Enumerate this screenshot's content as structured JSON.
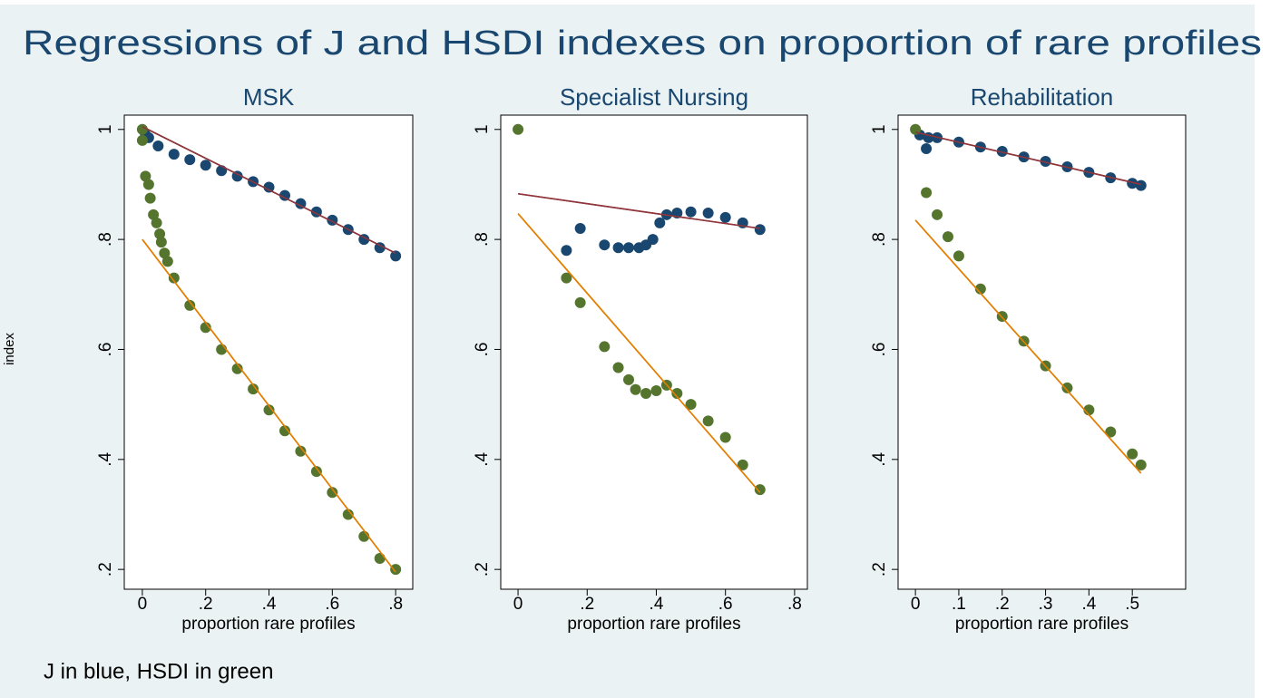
{
  "title": "Regressions of J and HSDI indexes on proportion of rare profiles",
  "ylabel": "index",
  "note": "J in blue, HSDI in green",
  "chart_data": [
    {
      "type": "scatter",
      "title": "MSK",
      "xlabel": "proportion rare profiles",
      "xlim": [
        -0.057,
        0.854
      ],
      "xticks": [
        0,
        {
          "value": 0.2,
          "label": ".2"
        },
        {
          "value": 0.4,
          "label": ".4"
        },
        {
          "value": 0.6,
          "label": ".6"
        },
        {
          "value": 0.8,
          "label": ".8"
        }
      ],
      "ylim": [
        0.164,
        1.026
      ],
      "yticks": [
        {
          "value": 0.2,
          "label": ".2"
        },
        {
          "value": 0.4,
          "label": ".4"
        },
        {
          "value": 0.6,
          "label": ".6"
        },
        {
          "value": 0.8,
          "label": ".8"
        },
        1
      ],
      "series": [
        {
          "color": "#1a476f",
          "mode": "markers",
          "x": [
            0.01,
            0.02,
            0.05,
            0.1,
            0.15,
            0.2,
            0.25,
            0.3,
            0.35,
            0.4,
            0.45,
            0.5,
            0.55,
            0.6,
            0.65,
            0.7,
            0.75,
            0.8
          ],
          "values": [
            0.99,
            0.985,
            0.97,
            0.955,
            0.945,
            0.935,
            0.925,
            0.915,
            0.905,
            0.895,
            0.88,
            0.865,
            0.85,
            0.835,
            0.818,
            0.8,
            0.785,
            0.77
          ]
        },
        {
          "color": "#55752f",
          "mode": "markers",
          "x": [
            0,
            0,
            0.01,
            0.02,
            0.025,
            0.035,
            0.045,
            0.055,
            0.06,
            0.07,
            0.08,
            0.1,
            0.15,
            0.2,
            0.25,
            0.3,
            0.35,
            0.4,
            0.45,
            0.5,
            0.55,
            0.6,
            0.65,
            0.7,
            0.75,
            0.8
          ],
          "values": [
            1.0,
            0.98,
            0.915,
            0.9,
            0.875,
            0.845,
            0.83,
            0.81,
            0.795,
            0.775,
            0.76,
            0.73,
            0.68,
            0.64,
            0.6,
            0.565,
            0.528,
            0.49,
            0.452,
            0.415,
            0.378,
            0.34,
            0.3,
            0.26,
            0.22,
            0.2
          ]
        },
        {
          "color": "#90353b",
          "mode": "line",
          "x": [
            0,
            0.8
          ],
          "values": [
            1.005,
            0.775
          ]
        },
        {
          "color": "#e37e00",
          "mode": "line",
          "x": [
            0,
            0.8
          ],
          "values": [
            0.8,
            0.195
          ]
        }
      ]
    },
    {
      "type": "scatter",
      "title": "Specialist Nursing",
      "xlabel": "proportion rare profiles",
      "xlim": [
        -0.05,
        0.837
      ],
      "xticks": [
        0,
        {
          "value": 0.2,
          "label": ".2"
        },
        {
          "value": 0.4,
          "label": ".4"
        },
        {
          "value": 0.6,
          "label": ".6"
        },
        {
          "value": 0.8,
          "label": ".8"
        }
      ],
      "ylim": [
        0.164,
        1.026
      ],
      "yticks": [
        {
          "value": 0.2,
          "label": ".2"
        },
        {
          "value": 0.4,
          "label": ".4"
        },
        {
          "value": 0.6,
          "label": ".6"
        },
        {
          "value": 0.8,
          "label": ".8"
        },
        1
      ],
      "series": [
        {
          "color": "#1a476f",
          "mode": "markers",
          "x": [
            0.14,
            0.18,
            0.25,
            0.29,
            0.32,
            0.35,
            0.37,
            0.39,
            0.41,
            0.43,
            0.46,
            0.5,
            0.55,
            0.6,
            0.65,
            0.7
          ],
          "values": [
            0.78,
            0.82,
            0.79,
            0.785,
            0.785,
            0.785,
            0.79,
            0.8,
            0.83,
            0.845,
            0.848,
            0.85,
            0.848,
            0.84,
            0.83,
            0.818
          ]
        },
        {
          "color": "#55752f",
          "mode": "markers",
          "x": [
            0,
            0.14,
            0.18,
            0.25,
            0.29,
            0.32,
            0.34,
            0.37,
            0.4,
            0.43,
            0.46,
            0.5,
            0.55,
            0.6,
            0.65,
            0.7
          ],
          "values": [
            1.0,
            0.73,
            0.685,
            0.605,
            0.567,
            0.545,
            0.527,
            0.52,
            0.525,
            0.535,
            0.52,
            0.5,
            0.47,
            0.44,
            0.39,
            0.345
          ]
        },
        {
          "color": "#90353b",
          "mode": "line",
          "x": [
            0,
            0.7
          ],
          "values": [
            0.883,
            0.82
          ]
        },
        {
          "color": "#e37e00",
          "mode": "line",
          "x": [
            0,
            0.7
          ],
          "values": [
            0.847,
            0.34
          ]
        }
      ]
    },
    {
      "type": "scatter",
      "title": "Rehabilitation",
      "xlabel": "proportion rare profiles",
      "xlim": [
        -0.04,
        0.623
      ],
      "xticks": [
        0,
        {
          "value": 0.1,
          "label": ".1"
        },
        {
          "value": 0.2,
          "label": ".2"
        },
        {
          "value": 0.3,
          "label": ".3"
        },
        {
          "value": 0.4,
          "label": ".4"
        },
        {
          "value": 0.5,
          "label": ".5"
        }
      ],
      "ylim": [
        0.164,
        1.026
      ],
      "yticks": [
        {
          "value": 0.2,
          "label": ".2"
        },
        {
          "value": 0.4,
          "label": ".4"
        },
        {
          "value": 0.6,
          "label": ".6"
        },
        {
          "value": 0.8,
          "label": ".8"
        },
        1
      ],
      "series": [
        {
          "color": "#1a476f",
          "mode": "markers",
          "x": [
            0.01,
            0.025,
            0.03,
            0.05,
            0.1,
            0.15,
            0.2,
            0.25,
            0.3,
            0.35,
            0.4,
            0.45,
            0.5,
            0.52
          ],
          "values": [
            0.99,
            0.965,
            0.985,
            0.985,
            0.977,
            0.968,
            0.96,
            0.95,
            0.942,
            0.932,
            0.922,
            0.912,
            0.902,
            0.898
          ]
        },
        {
          "color": "#55752f",
          "mode": "markers",
          "x": [
            0,
            0.025,
            0.05,
            0.075,
            0.1,
            0.15,
            0.2,
            0.25,
            0.3,
            0.35,
            0.4,
            0.45,
            0.5,
            0.52
          ],
          "values": [
            1.0,
            0.885,
            0.845,
            0.805,
            0.77,
            0.71,
            0.66,
            0.615,
            0.57,
            0.53,
            0.49,
            0.45,
            0.41,
            0.39
          ]
        },
        {
          "color": "#90353b",
          "mode": "line",
          "x": [
            0,
            0.52
          ],
          "values": [
            0.995,
            0.9
          ]
        },
        {
          "color": "#e37e00",
          "mode": "line",
          "x": [
            0,
            0.52
          ],
          "values": [
            0.835,
            0.375
          ]
        }
      ]
    }
  ]
}
